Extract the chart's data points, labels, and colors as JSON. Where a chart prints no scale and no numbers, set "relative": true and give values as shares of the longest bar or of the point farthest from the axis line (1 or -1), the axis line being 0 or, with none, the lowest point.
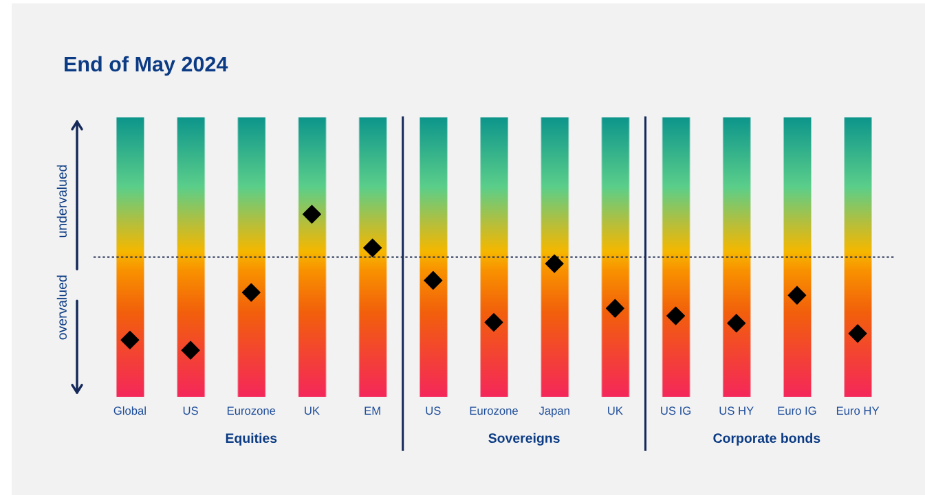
{
  "chart_data": {
    "type": "scatter",
    "title": "End of May 2024",
    "relative": true,
    "marker": "diamond",
    "categories": [
      "Global",
      "US",
      "Eurozone",
      "UK",
      "EM",
      "US",
      "Eurozone",
      "Japan",
      "UK",
      "US IG",
      "US HY",
      "Euro IG",
      "Euro HY"
    ],
    "series": [
      {
        "color": "#000000",
        "values": [
          -0.89,
          -1,
          -0.38,
          0.46,
          0.1,
          -0.25,
          -0.7,
          -0.07,
          -0.55,
          -0.63,
          -0.71,
          -0.41,
          -0.82
        ]
      }
    ],
    "ref_lines": [
      {
        "axis": "y",
        "value": 0,
        "line_style": "dotted",
        "color": "#1f2d50"
      }
    ],
    "annotations": [
      "undervalued",
      "overvalued",
      "Equities",
      "Sovereigns",
      "Corporate bonds"
    ],
    "grid": false,
    "legend": false
  }
}
